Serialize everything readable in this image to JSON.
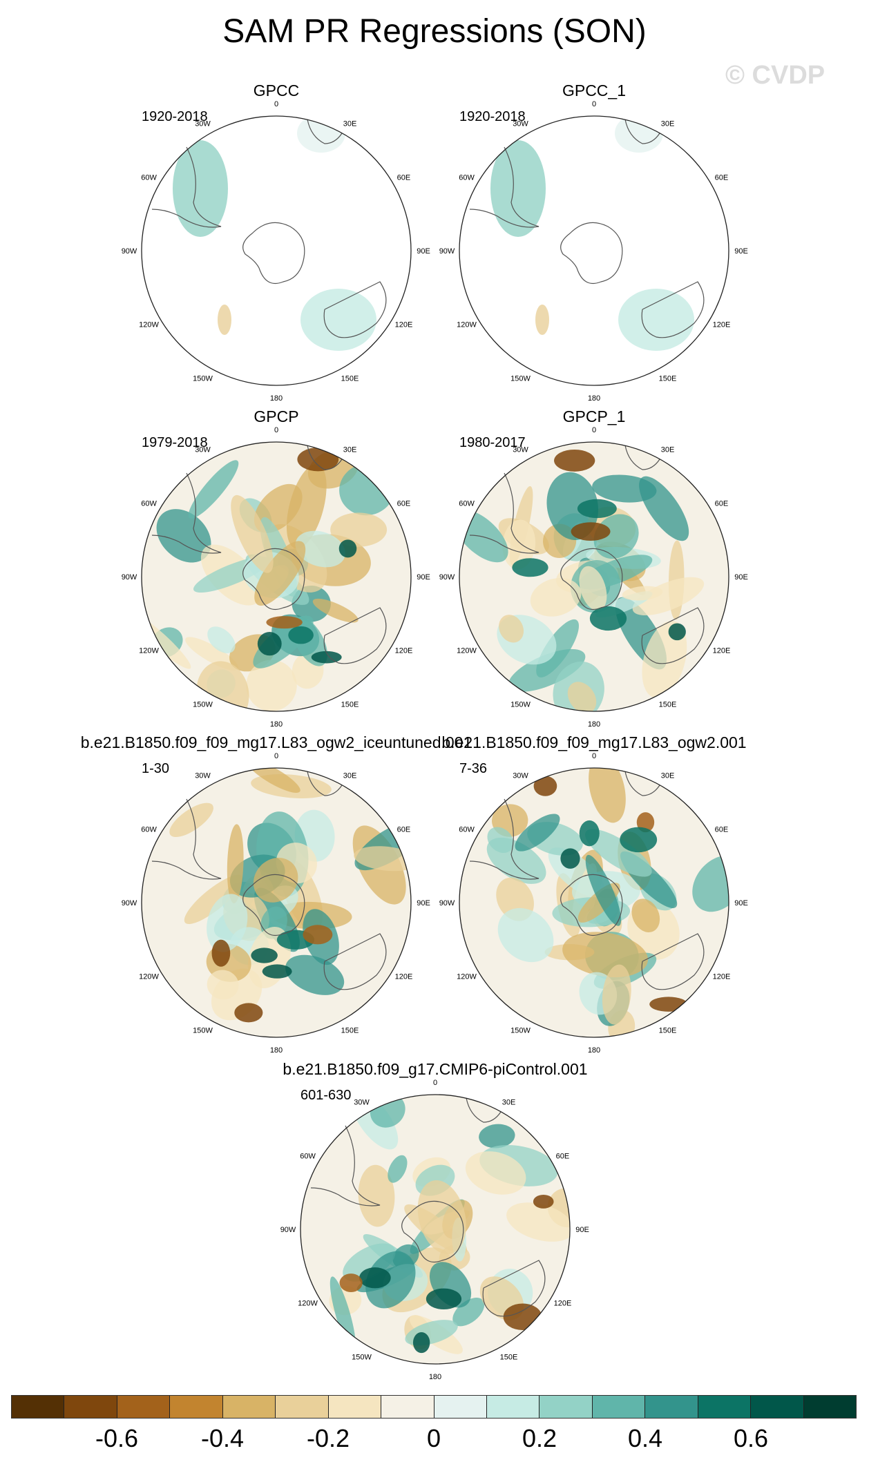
{
  "title": "SAM PR Regressions (SON)",
  "watermark": "© CVDP",
  "lon_labels": [
    "0",
    "30E",
    "60E",
    "90E",
    "120E",
    "150E",
    "180",
    "150W",
    "120W",
    "90W",
    "60W",
    "30W"
  ],
  "panels": [
    {
      "title": "GPCC",
      "years": "1920-2018",
      "fill": "land-only"
    },
    {
      "title": "GPCC_1",
      "years": "1920-2018",
      "fill": "land-only"
    },
    {
      "title": "GPCP",
      "years": "1979-2018",
      "fill": "full"
    },
    {
      "title": "GPCP_1",
      "years": "1980-2017",
      "fill": "full"
    },
    {
      "title": "b.e21.B1850.f09_f09_mg17.L83_ogw2_iceuntuned.001",
      "years": "1-30",
      "fill": "full"
    },
    {
      "title": "b.e21.B1850.f09_f09_mg17.L83_ogw2.001",
      "years": "7-36",
      "fill": "full"
    },
    {
      "title": "b.e21.B1850.f09_g17.CMIP6-piControl.001",
      "years": "601-630",
      "fill": "full"
    }
  ],
  "colorbar": {
    "colors": [
      "#543005",
      "#7f470d",
      "#a3621b",
      "#c2842f",
      "#d8b366",
      "#e9d09a",
      "#f5e5c0",
      "#f5f1e6",
      "#e5f2f0",
      "#c6ebe4",
      "#93d2c6",
      "#60b5aa",
      "#33948c",
      "#0c7465",
      "#01574a",
      "#003d30"
    ],
    "tick_labels": [
      "-0.6",
      "-0.4",
      "-0.2",
      "0",
      "0.2",
      "0.4",
      "0.6"
    ]
  }
}
